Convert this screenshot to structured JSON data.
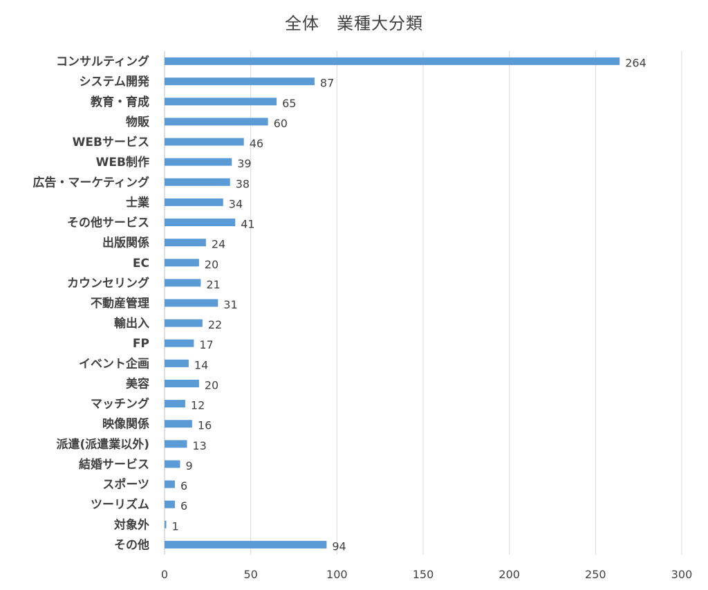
{
  "chart_data": {
    "type": "bar",
    "orientation": "horizontal",
    "title": "全体　業種大分類",
    "categories": [
      "コンサルティング",
      "システム開発",
      "教育・育成",
      "物販",
      "WEBサービス",
      "WEB制作",
      "広告・マーケティング",
      "士業",
      "その他サービス",
      "出版関係",
      "EC",
      "カウンセリング",
      "不動産管理",
      "輸出入",
      "FP",
      "イベント企画",
      "美容",
      "マッチング",
      "映像関係",
      "派遣(派遣業以外)",
      "結婚サービス",
      "スポーツ",
      "ツーリズム",
      "対象外",
      "その他"
    ],
    "values": [
      264,
      87,
      65,
      60,
      46,
      39,
      38,
      34,
      41,
      24,
      20,
      21,
      31,
      22,
      17,
      14,
      20,
      12,
      16,
      13,
      9,
      6,
      6,
      1,
      94
    ],
    "xlim": [
      0,
      300
    ],
    "xticks": [
      0,
      50,
      100,
      150,
      200,
      250,
      300
    ],
    "xlabel": "",
    "ylabel": "",
    "grid": true,
    "data_labels": true,
    "bar_color": "#5B9BD5",
    "grid_color": "#D9D9D9",
    "text_color": "#404040"
  }
}
